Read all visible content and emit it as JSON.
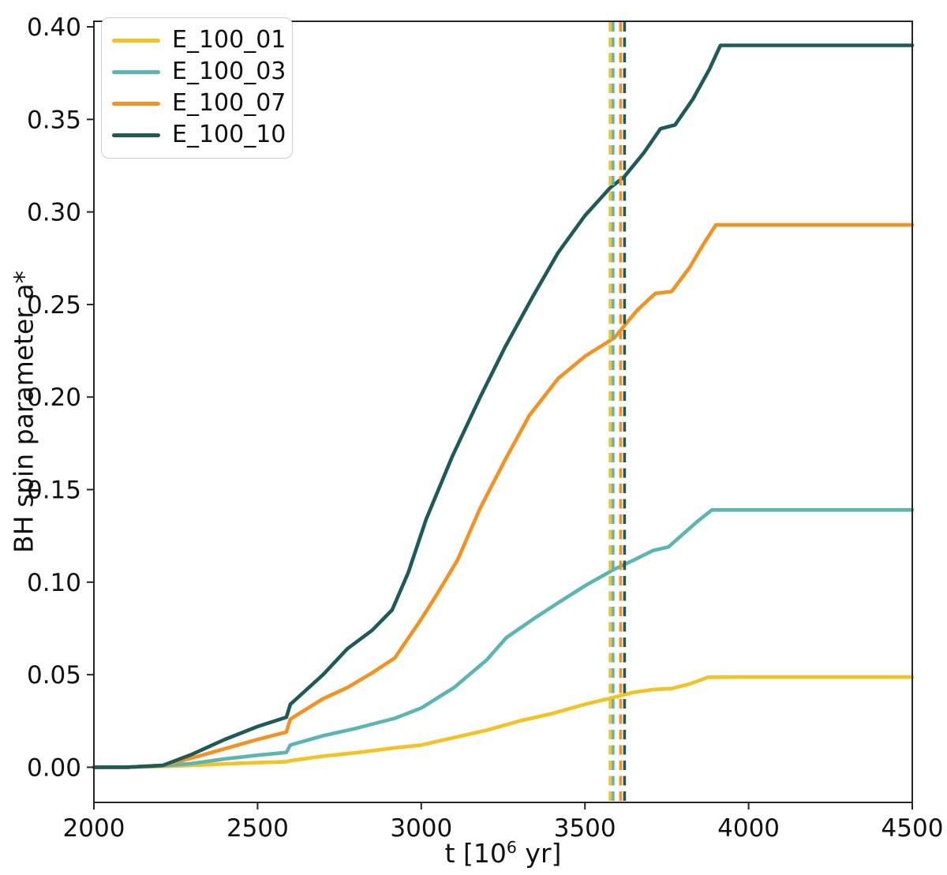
{
  "figure": {
    "background": "#ffffff",
    "spine_color": "#262626",
    "text_color": "#111111"
  },
  "chart_data": {
    "type": "line",
    "title": "",
    "xlabel": "t [10^6 yr]",
    "xlabel_parts": {
      "prefix": "t [10",
      "sup": "6",
      "suffix": " yr]"
    },
    "ylabel": "BH spin parameter a*",
    "xlim": [
      2000,
      4500
    ],
    "ylim": [
      -0.019,
      0.403
    ],
    "grid": false,
    "legend_position": "upper-left",
    "x_ticks": [
      "2000",
      "2500",
      "3000",
      "3500",
      "4000",
      "4500"
    ],
    "x_tick_values": [
      2000,
      2500,
      3000,
      3500,
      4000,
      4500
    ],
    "y_ticks": [
      "0.00",
      "0.05",
      "0.10",
      "0.15",
      "0.20",
      "0.25",
      "0.30",
      "0.35",
      "0.40"
    ],
    "y_tick_values": [
      0.0,
      0.05,
      0.1,
      0.15,
      0.2,
      0.25,
      0.3,
      0.35,
      0.4
    ],
    "series": [
      {
        "name": "E_100_01",
        "color": "#F5C31E",
        "points": [
          [
            2000,
            0
          ],
          [
            2100,
            0
          ],
          [
            2210,
            0.0005
          ],
          [
            2300,
            0.001
          ],
          [
            2400,
            0.0018
          ],
          [
            2500,
            0.0025
          ],
          [
            2588,
            0.003
          ],
          [
            2600,
            0.0035
          ],
          [
            2700,
            0.006
          ],
          [
            2800,
            0.0078
          ],
          [
            2920,
            0.0105
          ],
          [
            3000,
            0.012
          ],
          [
            3100,
            0.016
          ],
          [
            3200,
            0.02
          ],
          [
            3300,
            0.025
          ],
          [
            3400,
            0.029
          ],
          [
            3500,
            0.034
          ],
          [
            3594,
            0.038
          ],
          [
            3650,
            0.0405
          ],
          [
            3710,
            0.042
          ],
          [
            3765,
            0.0425
          ],
          [
            3820,
            0.045
          ],
          [
            3876,
            0.0486
          ],
          [
            3950,
            0.0487
          ],
          [
            4200,
            0.0487
          ],
          [
            4500,
            0.0487
          ]
        ]
      },
      {
        "name": "E_100_03",
        "color": "#59B6B2",
        "points": [
          [
            2000,
            0
          ],
          [
            2100,
            0
          ],
          [
            2210,
            0.0008
          ],
          [
            2300,
            0.002
          ],
          [
            2400,
            0.0045
          ],
          [
            2500,
            0.0065
          ],
          [
            2588,
            0.008
          ],
          [
            2600,
            0.012
          ],
          [
            2700,
            0.017
          ],
          [
            2800,
            0.021
          ],
          [
            2920,
            0.0265
          ],
          [
            3000,
            0.032
          ],
          [
            3100,
            0.043
          ],
          [
            3200,
            0.058
          ],
          [
            3260,
            0.07
          ],
          [
            3350,
            0.081
          ],
          [
            3420,
            0.089
          ],
          [
            3500,
            0.098
          ],
          [
            3590,
            0.107
          ],
          [
            3650,
            0.112
          ],
          [
            3707,
            0.117
          ],
          [
            3755,
            0.119
          ],
          [
            3800,
            0.126
          ],
          [
            3845,
            0.133
          ],
          [
            3888,
            0.139
          ],
          [
            3950,
            0.139
          ],
          [
            4200,
            0.139
          ],
          [
            4500,
            0.139
          ]
        ]
      },
      {
        "name": "E_100_07",
        "color": "#F6911E",
        "points": [
          [
            2000,
            0
          ],
          [
            2100,
            0
          ],
          [
            2210,
            0.001
          ],
          [
            2300,
            0.005
          ],
          [
            2400,
            0.01
          ],
          [
            2500,
            0.015
          ],
          [
            2588,
            0.019
          ],
          [
            2600,
            0.026
          ],
          [
            2700,
            0.037
          ],
          [
            2774,
            0.043
          ],
          [
            2850,
            0.051
          ],
          [
            2919,
            0.059
          ],
          [
            3000,
            0.08
          ],
          [
            3050,
            0.094
          ],
          [
            3111,
            0.112
          ],
          [
            3180,
            0.14
          ],
          [
            3256,
            0.166
          ],
          [
            3330,
            0.19
          ],
          [
            3418,
            0.21
          ],
          [
            3500,
            0.222
          ],
          [
            3590,
            0.232
          ],
          [
            3618,
            0.238
          ],
          [
            3660,
            0.247
          ],
          [
            3715,
            0.256
          ],
          [
            3765,
            0.257
          ],
          [
            3820,
            0.27
          ],
          [
            3860,
            0.282
          ],
          [
            3900,
            0.293
          ],
          [
            4000,
            0.293
          ],
          [
            4500,
            0.293
          ]
        ]
      },
      {
        "name": "E_100_10",
        "color": "#1C5B58",
        "points": [
          [
            2000,
            0
          ],
          [
            2100,
            0
          ],
          [
            2210,
            0.001
          ],
          [
            2300,
            0.007
          ],
          [
            2400,
            0.015
          ],
          [
            2500,
            0.022
          ],
          [
            2588,
            0.027
          ],
          [
            2600,
            0.034
          ],
          [
            2700,
            0.05
          ],
          [
            2774,
            0.064
          ],
          [
            2850,
            0.074
          ],
          [
            2911,
            0.085
          ],
          [
            2960,
            0.105
          ],
          [
            3015,
            0.134
          ],
          [
            3095,
            0.168
          ],
          [
            3180,
            0.2
          ],
          [
            3256,
            0.227
          ],
          [
            3340,
            0.254
          ],
          [
            3418,
            0.278
          ],
          [
            3500,
            0.298
          ],
          [
            3577,
            0.313
          ],
          [
            3620,
            0.319
          ],
          [
            3680,
            0.332
          ],
          [
            3731,
            0.345
          ],
          [
            3775,
            0.347
          ],
          [
            3830,
            0.361
          ],
          [
            3880,
            0.377
          ],
          [
            3914,
            0.39
          ],
          [
            4000,
            0.39
          ],
          [
            4500,
            0.39
          ]
        ]
      }
    ],
    "vlines": [
      {
        "x": 3577,
        "color": "#F5C31E",
        "style": "dashed"
      },
      {
        "x": 3586,
        "color": "#59B6B2",
        "style": "dashed"
      },
      {
        "x": 3609,
        "color": "#F6911E",
        "style": "dashed"
      },
      {
        "x": 3621,
        "color": "#1C5B58",
        "style": "dashed"
      }
    ]
  },
  "legend": {
    "items": [
      {
        "label": "E_100_01"
      },
      {
        "label": "E_100_03"
      },
      {
        "label": "E_100_07"
      },
      {
        "label": "E_100_10"
      }
    ]
  }
}
